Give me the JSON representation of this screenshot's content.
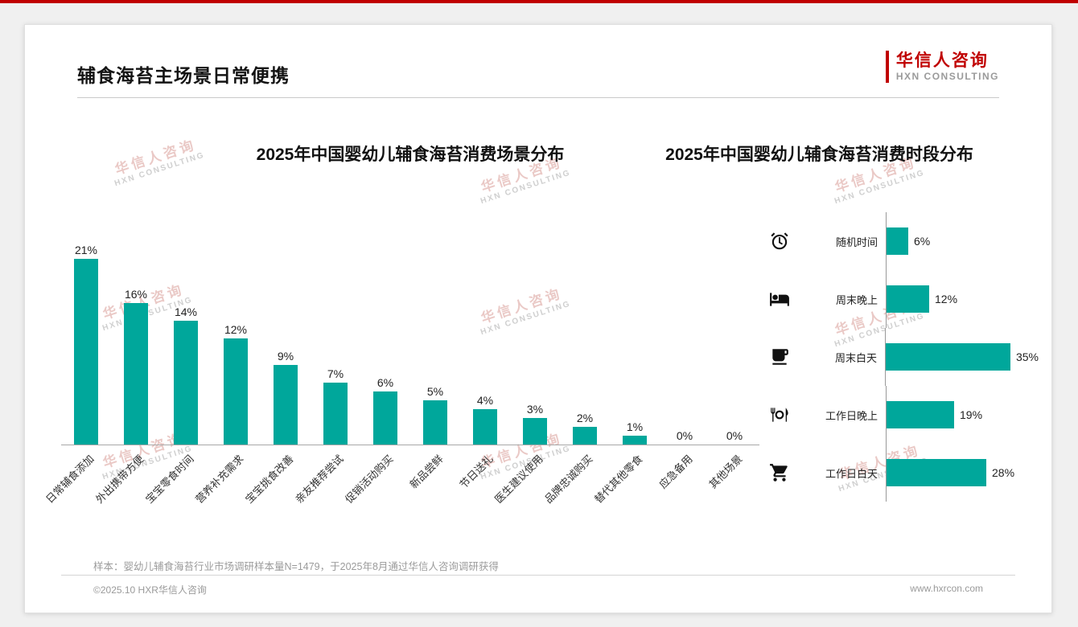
{
  "page": {
    "title": "辅食海苔主场景日常便携",
    "logo": {
      "name": "华信人咨询",
      "sub": "HXN CONSULTING"
    },
    "watermark_line1": "华信人咨询",
    "watermark_line2": "HXN CONSULTING",
    "footnote": "样本：婴幼儿辅食海苔行业市场调研样本量N=1479，于2025年8月通过华信人咨询调研获得",
    "footer_left": "©2025.10 HXR华信人咨询",
    "footer_right": "www.hxrcon.com"
  },
  "colors": {
    "bar": "#00a79b",
    "accent": "#c00000"
  },
  "chart_data": [
    {
      "type": "bar",
      "orientation": "vertical",
      "title": "2025年中国婴幼儿辅食海苔消费场景分布",
      "unit": "%",
      "ylim": [
        0,
        21
      ],
      "grid": false,
      "categories": [
        "日常辅食添加",
        "外出携带方便",
        "宝宝零食时间",
        "营养补充需求",
        "宝宝挑食改善",
        "亲友推荐尝试",
        "促销活动购买",
        "新品尝鲜",
        "节日送礼",
        "医生建议使用",
        "品牌忠诚购买",
        "替代其他零食",
        "应急备用",
        "其他场景"
      ],
      "values": [
        21,
        16,
        14,
        12,
        9,
        7,
        6,
        5,
        4,
        3,
        2,
        1,
        0,
        0
      ]
    },
    {
      "type": "bar",
      "orientation": "horizontal",
      "title": "2025年中国婴幼儿辅食海苔消费时段分布",
      "unit": "%",
      "xlim": [
        0,
        35
      ],
      "grid": false,
      "categories": [
        "随机时间",
        "周末晚上",
        "周末白天",
        "工作日晚上",
        "工作日白天"
      ],
      "values": [
        6,
        12,
        35,
        19,
        28
      ],
      "icons": [
        "alarm-clock-icon",
        "bed-icon",
        "coffee-icon",
        "meal-icon",
        "cart-icon"
      ]
    }
  ]
}
